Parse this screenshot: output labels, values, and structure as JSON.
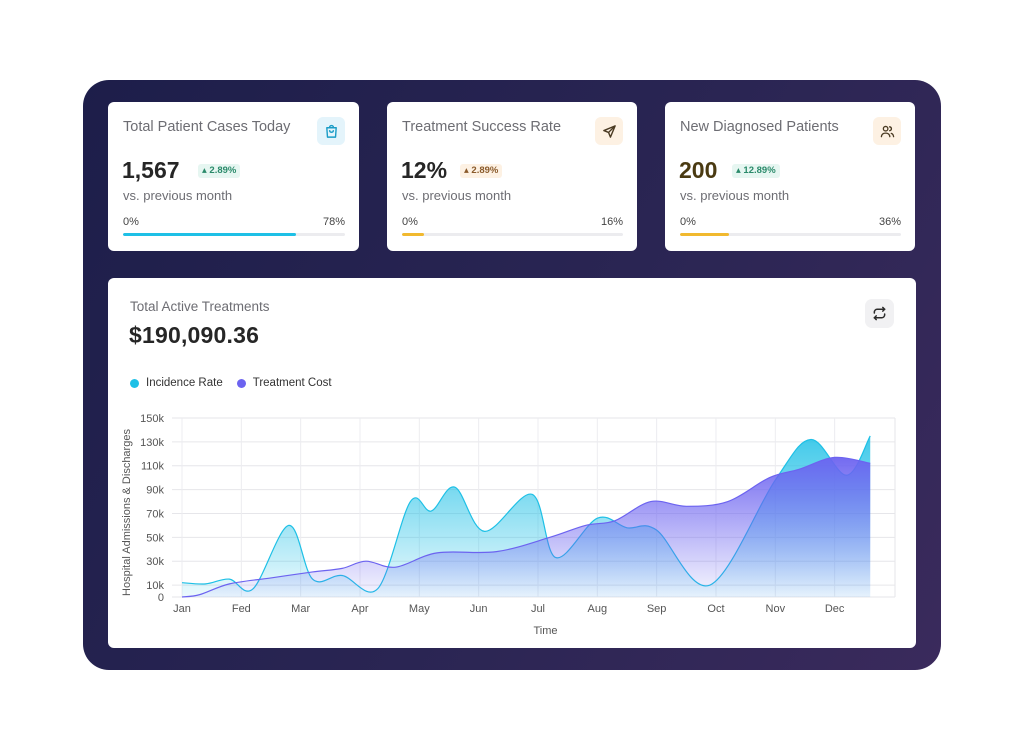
{
  "stats": [
    {
      "title": "Total Patient Cases Today",
      "value": "1,567",
      "badge": "2.89%",
      "subtitle": "vs. previous month",
      "min": "0%",
      "max": "78%",
      "progress": 0.78,
      "icon": "shopping-bag-icon",
      "value_color": "#262626",
      "fill_color": "#1ec0e6",
      "icon_bg": "#e4f4fb",
      "icon_color": "#1a9cc6",
      "badge_bg": "#e6f6f1",
      "badge_color": "#2a8a6a"
    },
    {
      "title": "Treatment Success Rate",
      "value": "12%",
      "badge": "2.89%",
      "subtitle": "vs. previous month",
      "min": "0%",
      "max": "16%",
      "progress": 0.1,
      "icon": "send-icon",
      "value_color": "#262626",
      "fill_color": "#f1b92f",
      "icon_bg": "#fdf1e3",
      "icon_color": "#4a3a22",
      "badge_bg": "#fdf1e3",
      "badge_color": "#8a5a2a"
    },
    {
      "title": "New Diagnosed Patients",
      "value": "200",
      "badge": "12.89%",
      "subtitle": "vs. previous month",
      "min": "0%",
      "max": "36%",
      "progress": 0.22,
      "icon": "users-icon",
      "value_color": "#4a3a12",
      "fill_color": "#f1b92f",
      "icon_bg": "#fdf1e3",
      "icon_color": "#4a3a22",
      "badge_bg": "#e6f6f1",
      "badge_color": "#2a8a6a"
    }
  ],
  "chart": {
    "title": "Total Active Treatments",
    "total": "$190,090.36",
    "refresh_icon": "repeat-icon"
  },
  "chart_data": {
    "type": "area",
    "xlabel": "Time",
    "ylabel": "Hospital Admissions & Discharges",
    "x": [
      "Jan",
      "Fed",
      "Mar",
      "Apr",
      "May",
      "Jun",
      "Jul",
      "Aug",
      "Sep",
      "Oct",
      "Nov",
      "Dec"
    ],
    "yticks": [
      "0",
      "10k",
      "30k",
      "50k",
      "70k",
      "90k",
      "110k",
      "130k",
      "150k"
    ],
    "ylim": [
      0,
      150000
    ],
    "grid": true,
    "legend": "top-left",
    "series": [
      {
        "name": "Incidence Rate",
        "color": "#1ec0e6",
        "points": [
          [
            0,
            12000
          ],
          [
            0.4,
            11000
          ],
          [
            0.8,
            15000
          ],
          [
            1.2,
            7000
          ],
          [
            1.8,
            60000
          ],
          [
            2.2,
            15000
          ],
          [
            2.7,
            18000
          ],
          [
            3.3,
            7000
          ],
          [
            3.85,
            80000
          ],
          [
            4.2,
            72000
          ],
          [
            4.6,
            92000
          ],
          [
            5.1,
            55000
          ],
          [
            5.9,
            86000
          ],
          [
            6.3,
            33000
          ],
          [
            7,
            66000
          ],
          [
            7.5,
            58000
          ],
          [
            8,
            56000
          ],
          [
            8.9,
            10000
          ],
          [
            10,
            98000
          ],
          [
            10.6,
            132000
          ],
          [
            11.2,
            102000
          ],
          [
            11.6,
            135000
          ]
        ]
      },
      {
        "name": "Treatment Cost",
        "color": "#6c63f0",
        "points": [
          [
            0,
            0
          ],
          [
            0.3,
            2000
          ],
          [
            0.8,
            11000
          ],
          [
            1.5,
            16000
          ],
          [
            2.2,
            21000
          ],
          [
            2.7,
            24000
          ],
          [
            3.1,
            30000
          ],
          [
            3.6,
            25000
          ],
          [
            4.3,
            37000
          ],
          [
            5.3,
            38000
          ],
          [
            6.2,
            50000
          ],
          [
            6.8,
            60000
          ],
          [
            7.3,
            64000
          ],
          [
            7.9,
            80000
          ],
          [
            8.5,
            76000
          ],
          [
            9.2,
            80000
          ],
          [
            9.9,
            100000
          ],
          [
            10.4,
            107000
          ],
          [
            11,
            117000
          ],
          [
            11.6,
            112000
          ]
        ]
      }
    ]
  }
}
